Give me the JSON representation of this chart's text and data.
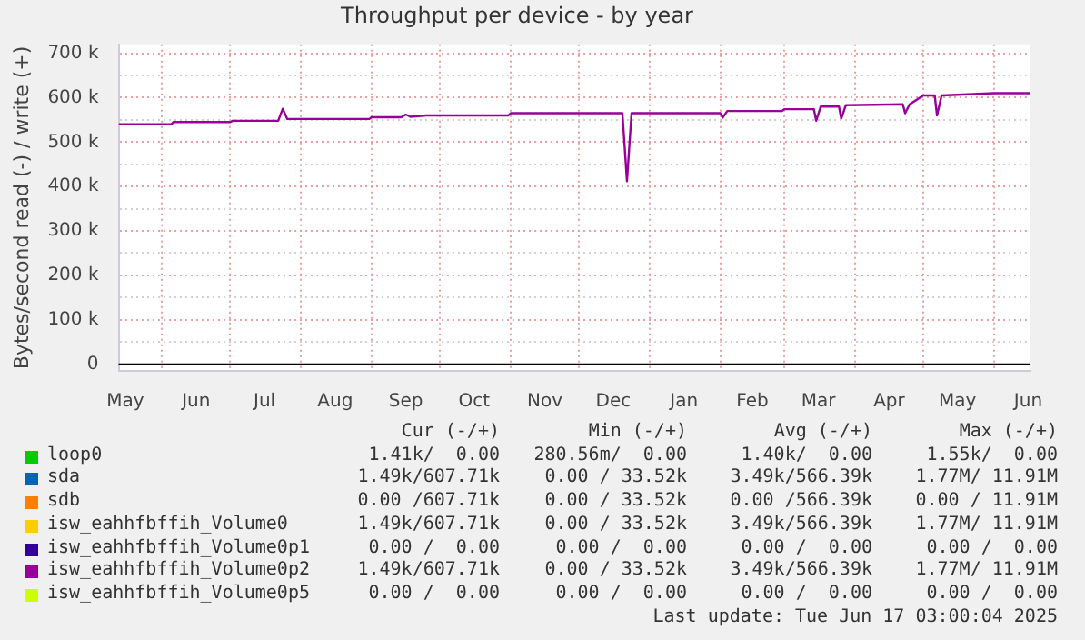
{
  "chart_data": {
    "type": "line",
    "title": "Throughput per device - by year",
    "ylabel": "Bytes/second read (-) / write (+)",
    "xlim": [
      "2024-05-13",
      "2025-06-17"
    ],
    "xticks": [
      {
        "value": "2024-05-16",
        "label": "May"
      },
      {
        "value": "2024-06-01",
        "label": null
      },
      {
        "value": "2024-06-16",
        "label": "Jun"
      },
      {
        "value": "2024-07-01",
        "label": null
      },
      {
        "value": "2024-07-16",
        "label": "Jul"
      },
      {
        "value": "2024-08-01",
        "label": null
      },
      {
        "value": "2024-08-16",
        "label": "Aug"
      },
      {
        "value": "2024-09-01",
        "label": null
      },
      {
        "value": "2024-09-16",
        "label": "Sep"
      },
      {
        "value": "2024-10-01",
        "label": null
      },
      {
        "value": "2024-10-16",
        "label": "Oct"
      },
      {
        "value": "2024-11-01",
        "label": null
      },
      {
        "value": "2024-11-16",
        "label": "Nov"
      },
      {
        "value": "2024-12-01",
        "label": null
      },
      {
        "value": "2024-12-16",
        "label": "Dec"
      },
      {
        "value": "2025-01-01",
        "label": null
      },
      {
        "value": "2025-01-16",
        "label": "Jan"
      },
      {
        "value": "2025-02-01",
        "label": null
      },
      {
        "value": "2025-02-15",
        "label": "Feb"
      },
      {
        "value": "2025-03-01",
        "label": null
      },
      {
        "value": "2025-03-16",
        "label": "Mar"
      },
      {
        "value": "2025-04-01",
        "label": null
      },
      {
        "value": "2025-04-16",
        "label": "Apr"
      },
      {
        "value": "2025-05-01",
        "label": null
      },
      {
        "value": "2025-05-16",
        "label": "May"
      },
      {
        "value": "2025-06-01",
        "label": null
      },
      {
        "value": "2025-06-16",
        "label": "Jun"
      }
    ],
    "ylim": [
      -15000,
      720000
    ],
    "yticks": [
      {
        "value": 0,
        "label": "0"
      },
      {
        "value": 50000,
        "label": null
      },
      {
        "value": 100000,
        "label": "100 k"
      },
      {
        "value": 150000,
        "label": null
      },
      {
        "value": 200000,
        "label": "200 k"
      },
      {
        "value": 250000,
        "label": null
      },
      {
        "value": 300000,
        "label": "300 k"
      },
      {
        "value": 350000,
        "label": null
      },
      {
        "value": 400000,
        "label": "400 k"
      },
      {
        "value": 450000,
        "label": null
      },
      {
        "value": 500000,
        "label": "500 k"
      },
      {
        "value": 550000,
        "label": null
      },
      {
        "value": 600000,
        "label": "600 k"
      },
      {
        "value": 650000,
        "label": null
      },
      {
        "value": 700000,
        "label": "700 k"
      }
    ],
    "grid": true,
    "legend": "bottom",
    "marker": "none",
    "line_style": "solid",
    "x": [
      "2024-05-13",
      "2024-06-05",
      "2024-06-06",
      "2024-07-01",
      "2024-07-02",
      "2024-07-22",
      "2024-07-24",
      "2024-07-26",
      "2024-08-31",
      "2024-09-01",
      "2024-09-14",
      "2024-09-16",
      "2024-09-18",
      "2024-09-25",
      "2024-10-31",
      "2024-11-01",
      "2024-12-20",
      "2024-12-22",
      "2024-12-24",
      "2025-02-01",
      "2025-02-02",
      "2025-02-04",
      "2025-02-28",
      "2025-03-01",
      "2025-03-14",
      "2025-03-15",
      "2025-03-17",
      "2025-03-25",
      "2025-03-26",
      "2025-03-28",
      "2025-04-22",
      "2025-04-23",
      "2025-04-25",
      "2025-05-01",
      "2025-05-06",
      "2025-05-07",
      "2025-05-09",
      "2025-06-01",
      "2025-06-17"
    ],
    "series": [
      {
        "name": "loop0",
        "color": "#00cc00",
        "values": [
          null,
          null,
          null,
          null,
          null,
          null,
          null,
          null,
          null,
          null,
          null,
          null,
          null,
          null,
          null,
          null,
          null,
          null,
          null,
          null,
          null,
          null,
          null,
          null,
          null,
          null,
          null,
          null,
          null,
          null,
          null,
          null,
          null,
          null,
          null,
          null,
          null,
          null,
          null
        ]
      },
      {
        "name": "sda",
        "color": "#0066b3",
        "values": [
          null,
          null,
          null,
          null,
          null,
          null,
          null,
          null,
          null,
          null,
          null,
          null,
          null,
          null,
          null,
          null,
          null,
          null,
          null,
          null,
          null,
          null,
          null,
          null,
          null,
          null,
          null,
          null,
          null,
          null,
          null,
          null,
          null,
          null,
          null,
          null,
          null,
          null,
          null
        ]
      },
      {
        "name": "sdb",
        "color": "#ff8000",
        "values": [
          null,
          null,
          null,
          null,
          null,
          null,
          null,
          null,
          null,
          null,
          null,
          null,
          null,
          null,
          null,
          null,
          null,
          null,
          null,
          null,
          null,
          null,
          null,
          null,
          null,
          null,
          null,
          null,
          null,
          null,
          null,
          null,
          null,
          null,
          null,
          null,
          null,
          null,
          null
        ]
      },
      {
        "name": "isw_eahhfbffih_Volume0",
        "color": "#ffcc00",
        "values": [
          null,
          null,
          null,
          null,
          null,
          null,
          null,
          null,
          null,
          null,
          null,
          null,
          null,
          null,
          null,
          null,
          null,
          null,
          null,
          null,
          null,
          null,
          null,
          null,
          null,
          null,
          null,
          null,
          null,
          null,
          null,
          null,
          null,
          null,
          null,
          null,
          null,
          null,
          null
        ]
      },
      {
        "name": "isw_eahhfbffih_Volume0p1",
        "color": "#330099",
        "values": [
          null,
          null,
          null,
          null,
          null,
          null,
          null,
          null,
          null,
          null,
          null,
          null,
          null,
          null,
          null,
          null,
          null,
          null,
          null,
          null,
          null,
          null,
          null,
          null,
          null,
          null,
          null,
          null,
          null,
          null,
          null,
          null,
          null,
          null,
          null,
          null,
          null,
          null,
          null
        ]
      },
      {
        "name": "isw_eahhfbffih_Volume0p2",
        "color": "#990099",
        "values": [
          540000,
          540000,
          545000,
          545000,
          548000,
          548000,
          575000,
          552000,
          552000,
          556000,
          556000,
          562000,
          557000,
          560000,
          560000,
          565000,
          565000,
          412000,
          565000,
          565000,
          555000,
          570000,
          570000,
          574000,
          574000,
          548000,
          580000,
          580000,
          553000,
          583000,
          585000,
          565000,
          585000,
          605000,
          605000,
          560000,
          605000,
          610000,
          610000
        ]
      },
      {
        "name": "isw_eahhfbffih_Volume0p5",
        "color": "#ccff00",
        "values": [
          null,
          null,
          null,
          null,
          null,
          null,
          null,
          null,
          null,
          null,
          null,
          null,
          null,
          null,
          null,
          null,
          null,
          null,
          null,
          null,
          null,
          null,
          null,
          null,
          null,
          null,
          null,
          null,
          null,
          null,
          null,
          null,
          null,
          null,
          null,
          null,
          null,
          null,
          null
        ]
      }
    ],
    "annotations": [
      "Cur (-/+)",
      "Min (-/+)",
      "Avg (-/+)",
      "Max (-/+)",
      "1.41k/  0.00",
      "280.56m/  0.00",
      "1.40k/  0.00",
      "1.55k/  0.00",
      "1.49k/607.71k",
      "0.00 / 33.52k",
      "3.49k/566.39k",
      "1.77M/ 11.91M",
      "0.00 /607.71k",
      "0.00 / 33.52k",
      "0.00 /566.39k",
      "0.00 / 11.91M",
      "1.49k/607.71k",
      "0.00 / 33.52k",
      "3.49k/566.39k",
      "1.77M/ 11.91M",
      "0.00 /  0.00",
      "0.00 /  0.00",
      "0.00 /  0.00",
      "0.00 /  0.00",
      "1.49k/607.71k",
      "0.00 / 33.52k",
      "3.49k/566.39k",
      "1.77M/ 11.91M",
      "0.00 /  0.00",
      "0.00 /  0.00",
      "0.00 /  0.00",
      "0.00 /  0.00",
      "Last update: Tue Jun 17 03:00:04 2025"
    ]
  }
}
